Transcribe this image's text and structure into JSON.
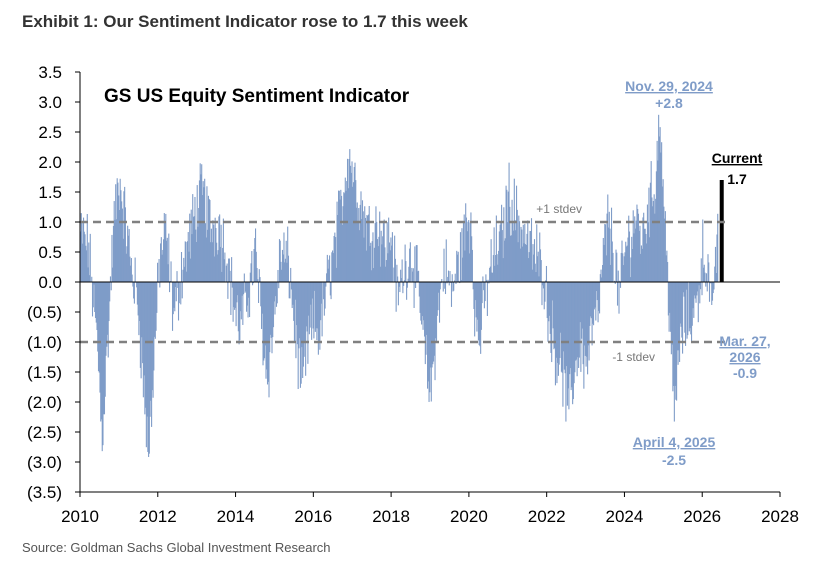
{
  "header": {
    "title": "Exhibit 1: Our Sentiment Indicator rose to 1.7 this week"
  },
  "footer": {
    "source": "Source: Goldman Sachs Global Investment Research"
  },
  "colors": {
    "bars": "#7f9cc8",
    "current_bar": "#000000",
    "band_lines": "#808080",
    "annotation": "#7f9cc8"
  },
  "chart_data": {
    "type": "bar",
    "title": "GS US Equity Sentiment Indicator",
    "xlabel": "",
    "ylabel": "",
    "xlim": [
      2010,
      2028
    ],
    "ylim": [
      -3.5,
      3.5
    ],
    "x_ticks": [
      "2010",
      "2012",
      "2014",
      "2016",
      "2018",
      "2020",
      "2022",
      "2024",
      "2026",
      "2028"
    ],
    "y_ticks": [
      {
        "v": 3.5,
        "label": "3.5"
      },
      {
        "v": 3.0,
        "label": "3.0"
      },
      {
        "v": 2.5,
        "label": "2.5"
      },
      {
        "v": 2.0,
        "label": "2.0"
      },
      {
        "v": 1.5,
        "label": "1.5"
      },
      {
        "v": 1.0,
        "label": "1.0"
      },
      {
        "v": 0.5,
        "label": "0.5"
      },
      {
        "v": 0.0,
        "label": "0.0"
      },
      {
        "v": -0.5,
        "label": "(0.5)"
      },
      {
        "v": -1.0,
        "label": "(1.0)"
      },
      {
        "v": -1.5,
        "label": "(1.5)"
      },
      {
        "v": -2.0,
        "label": "(2.0)"
      },
      {
        "v": -2.5,
        "label": "(2.5)"
      },
      {
        "v": -3.0,
        "label": "(3.0)"
      },
      {
        "v": -3.5,
        "label": "(3.5)"
      }
    ],
    "grid": false,
    "reference_lines": [
      {
        "value": 1.0,
        "label": "+1 stdev"
      },
      {
        "value": -1.0,
        "label": "-1 stdev"
      }
    ],
    "series": [
      {
        "values_anchor_points": [
          [
            2010.0,
            0.8
          ],
          [
            2010.2,
            0.6
          ],
          [
            2010.45,
            -1.2
          ],
          [
            2010.55,
            -2.6
          ],
          [
            2010.7,
            -1.0
          ],
          [
            2010.85,
            0.9
          ],
          [
            2011.0,
            1.7
          ],
          [
            2011.15,
            1.0
          ],
          [
            2011.3,
            0.3
          ],
          [
            2011.5,
            -0.5
          ],
          [
            2011.65,
            -2.0
          ],
          [
            2011.75,
            -2.9
          ],
          [
            2011.9,
            -1.2
          ],
          [
            2012.05,
            0.5
          ],
          [
            2012.2,
            0.8
          ],
          [
            2012.4,
            -0.6
          ],
          [
            2012.6,
            0.2
          ],
          [
            2012.8,
            0.7
          ],
          [
            2013.0,
            1.3
          ],
          [
            2013.15,
            1.5
          ],
          [
            2013.35,
            0.9
          ],
          [
            2013.55,
            1.0
          ],
          [
            2013.75,
            0.5
          ],
          [
            2013.95,
            -0.4
          ],
          [
            2014.1,
            -0.8
          ],
          [
            2014.3,
            -0.2
          ],
          [
            2014.5,
            0.5
          ],
          [
            2014.65,
            -0.6
          ],
          [
            2014.8,
            -1.6
          ],
          [
            2014.95,
            -0.8
          ],
          [
            2015.15,
            0.5
          ],
          [
            2015.35,
            0.3
          ],
          [
            2015.55,
            -1.0
          ],
          [
            2015.7,
            -1.8
          ],
          [
            2015.85,
            -1.0
          ],
          [
            2016.0,
            -0.7
          ],
          [
            2016.15,
            -0.9
          ],
          [
            2016.35,
            0.0
          ],
          [
            2016.55,
            0.6
          ],
          [
            2016.75,
            1.5
          ],
          [
            2016.9,
            2.2
          ],
          [
            2017.05,
            1.7
          ],
          [
            2017.25,
            1.2
          ],
          [
            2017.45,
            0.8
          ],
          [
            2017.65,
            1.0
          ],
          [
            2017.85,
            0.6
          ],
          [
            2018.0,
            0.8
          ],
          [
            2018.15,
            -0.3
          ],
          [
            2018.3,
            0.2
          ],
          [
            2018.5,
            0.5
          ],
          [
            2018.7,
            -0.2
          ],
          [
            2018.85,
            -1.2
          ],
          [
            2019.0,
            -1.9
          ],
          [
            2019.15,
            -0.8
          ],
          [
            2019.35,
            0.3
          ],
          [
            2019.55,
            -0.2
          ],
          [
            2019.75,
            0.4
          ],
          [
            2019.9,
            0.9
          ],
          [
            2020.05,
            1.1
          ],
          [
            2020.15,
            -0.6
          ],
          [
            2020.25,
            -1.0
          ],
          [
            2020.4,
            -0.3
          ],
          [
            2020.6,
            0.4
          ],
          [
            2020.85,
            0.8
          ],
          [
            2021.0,
            1.5
          ],
          [
            2021.15,
            1.2
          ],
          [
            2021.35,
            0.9
          ],
          [
            2021.55,
            0.6
          ],
          [
            2021.75,
            0.4
          ],
          [
            2021.9,
            0.2
          ],
          [
            2022.05,
            -0.6
          ],
          [
            2022.2,
            -1.1
          ],
          [
            2022.4,
            -1.5
          ],
          [
            2022.55,
            -2.2
          ],
          [
            2022.7,
            -1.5
          ],
          [
            2022.85,
            -1.0
          ],
          [
            2023.0,
            -1.4
          ],
          [
            2023.15,
            -0.8
          ],
          [
            2023.3,
            -0.6
          ],
          [
            2023.45,
            0.4
          ],
          [
            2023.55,
            1.0
          ],
          [
            2023.7,
            0.6
          ],
          [
            2023.85,
            -0.3
          ],
          [
            2024.0,
            0.5
          ],
          [
            2024.15,
            0.8
          ],
          [
            2024.3,
            1.1
          ],
          [
            2024.45,
            0.7
          ],
          [
            2024.6,
            1.3
          ],
          [
            2024.75,
            1.5
          ],
          [
            2024.9,
            2.8
          ],
          [
            2025.0,
            1.3
          ],
          [
            2025.1,
            0.1
          ],
          [
            2025.2,
            -1.1
          ],
          [
            2025.26,
            -2.5
          ],
          [
            2025.35,
            -1.4
          ],
          [
            2025.5,
            -0.7
          ],
          [
            2025.7,
            -0.6
          ],
          [
            2025.85,
            -0.4
          ],
          [
            2026.0,
            0.5
          ],
          [
            2026.1,
            0.3
          ],
          [
            2026.2,
            -0.3
          ],
          [
            2026.25,
            -0.9
          ],
          [
            2026.3,
            0.4
          ],
          [
            2026.4,
            0.7
          ]
        ]
      }
    ],
    "current": {
      "x": 2026.45,
      "value": 1.7
    },
    "annotations": [
      {
        "id": "peak",
        "label": "Nov. 29, 2024",
        "value": "+2.8",
        "x": 2024.91,
        "y": 2.8
      },
      {
        "id": "current",
        "label": "Current",
        "value": "1.7",
        "x": 2026.45,
        "y": 1.7
      },
      {
        "id": "mar27",
        "label_line1": "Mar. 27,",
        "label_line2": "2026",
        "value": "-0.9",
        "x": 2026.24,
        "y": -0.9
      },
      {
        "id": "apr4",
        "label": "April 4, 2025",
        "value": "-2.5",
        "x": 2025.26,
        "y": -2.5
      }
    ]
  }
}
